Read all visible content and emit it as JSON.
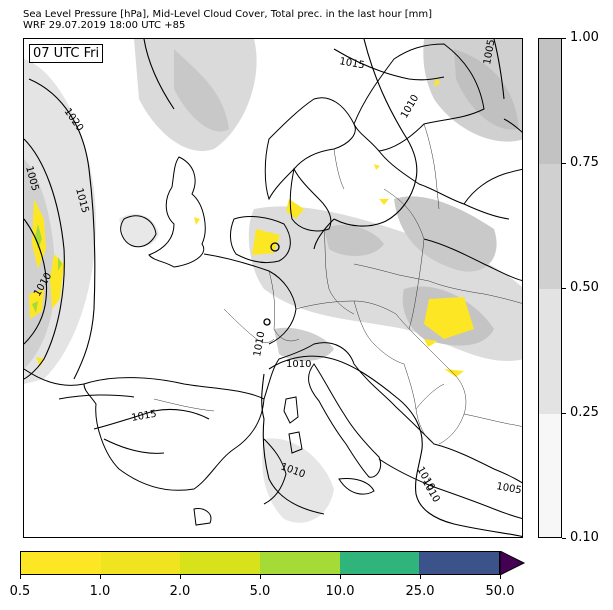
{
  "title": {
    "line1": "Sea Level Pressure [hPa], Mid-Level Cloud Cover, Total prec. in the last hour [mm]",
    "line2": "WRF 29.07.2019 18:00 UTC +85"
  },
  "time_label": "07 UTC Fri",
  "isobar_labels": [
    "1020",
    "1015",
    "1005",
    "1015",
    "1010",
    "1010",
    "1005",
    "1010",
    "1015",
    "1010",
    "1010",
    "1010",
    "1005",
    "1010"
  ],
  "cloud_colorbar": {
    "ticks": [
      "0.10",
      "0.25",
      "0.50",
      "0.75",
      "1.00"
    ],
    "colors": [
      "#f7f7f7",
      "#e3e3e3",
      "#d0d0d0",
      "#c2c2c2"
    ]
  },
  "precip_colorbar": {
    "ticks": [
      "0.5",
      "1.0",
      "2.0",
      "5.0",
      "10.0",
      "25.0",
      "50.0"
    ],
    "colors": [
      "#fde725",
      "#f0e31f",
      "#d7e21b",
      "#a5db36",
      "#2fb47c",
      "#3b528b",
      "#440154"
    ]
  },
  "colors": {
    "coast": "#000000",
    "border": "#333333",
    "isobar": "#000000",
    "precip_light": "#fde725",
    "precip_mid": "#a5db36"
  }
}
